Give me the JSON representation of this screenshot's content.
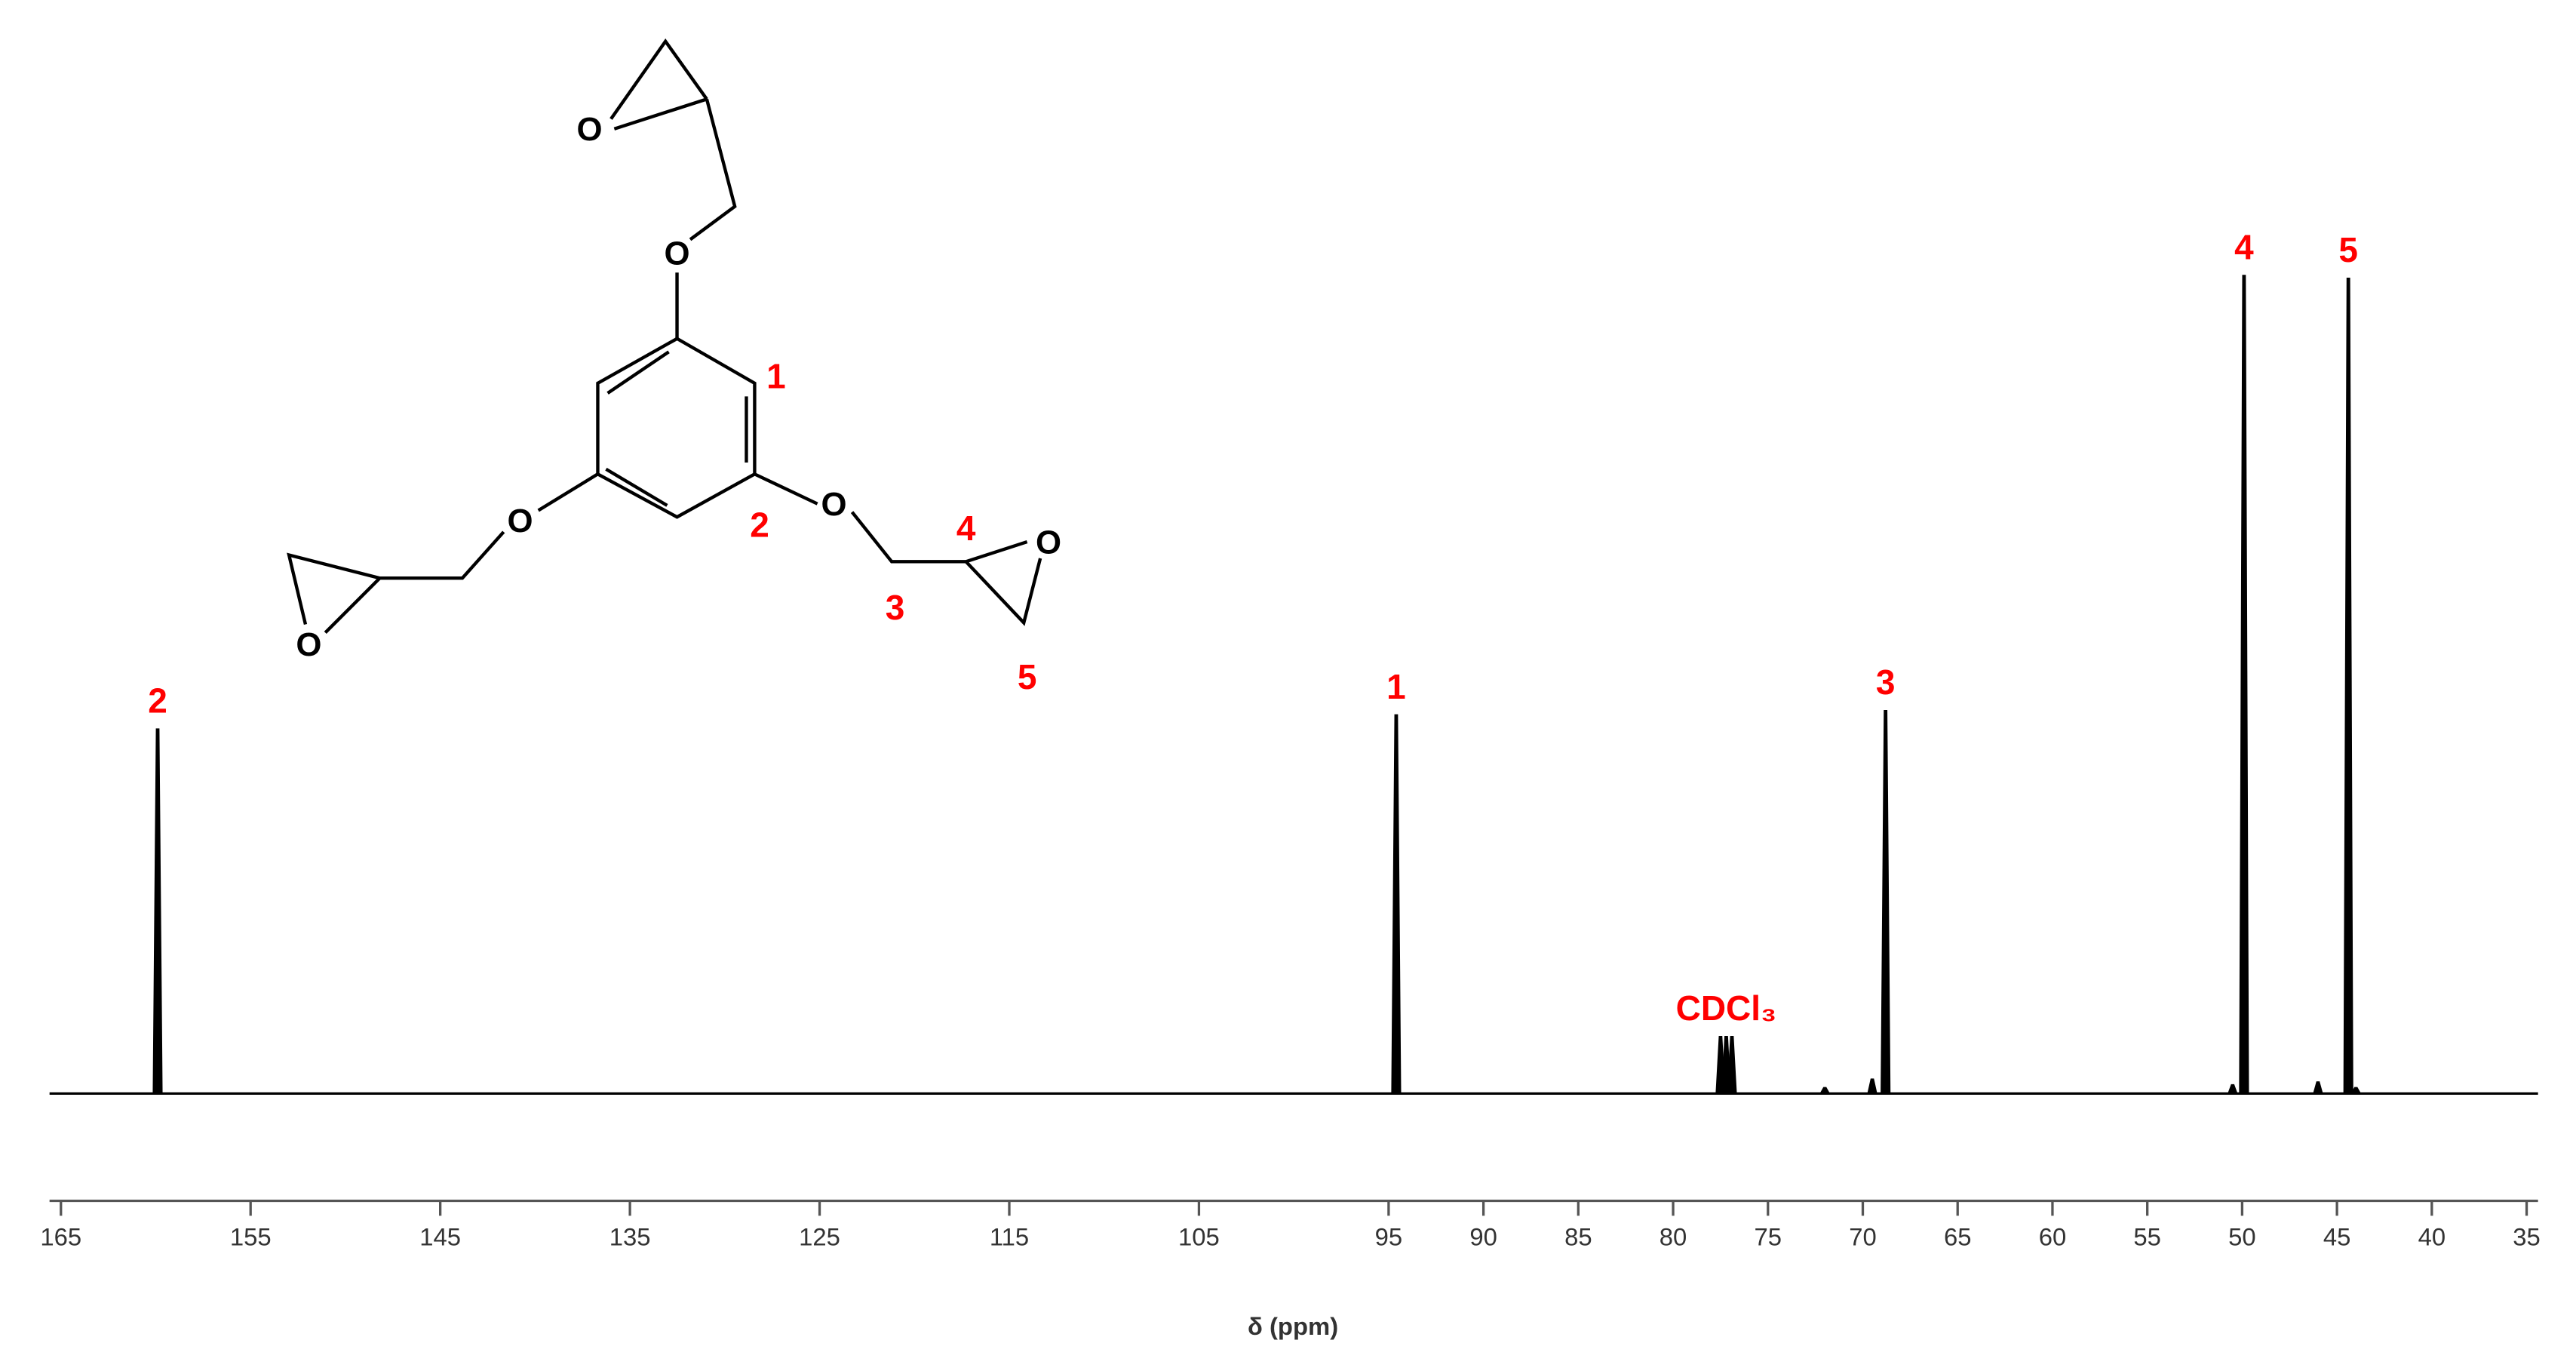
{
  "chart_data": {
    "type": "nmr-spectrum",
    "xlabel": "δ  (ppm)",
    "xlim": [
      165.6,
      34.4
    ],
    "xticks": [
      165,
      155,
      145,
      135,
      125,
      115,
      105,
      95,
      90,
      85,
      80,
      75,
      70,
      65,
      60,
      55,
      50,
      45,
      40,
      35
    ],
    "ylim": [
      0,
      620
    ],
    "color": "#000000",
    "label_color": "#ff0000",
    "x": [
      159.9,
      94.6,
      77.5,
      77.2,
      76.9,
      72.0,
      69.5,
      68.8,
      50.5,
      49.9,
      46.0,
      44.4,
      44.0
    ],
    "values": [
      257,
      267,
      40,
      40,
      40,
      4,
      10,
      270,
      6,
      577,
      8,
      575,
      4
    ],
    "peak_labels": [
      "2",
      "1",
      null,
      "CDCl₃",
      null,
      null,
      null,
      "3",
      null,
      "4",
      null,
      "5",
      null
    ]
  },
  "structure": {
    "atoms": [
      "O",
      "O",
      "O",
      "O",
      "O",
      "O"
    ],
    "labels": [
      "1",
      "2",
      "3",
      "4",
      "5"
    ]
  }
}
